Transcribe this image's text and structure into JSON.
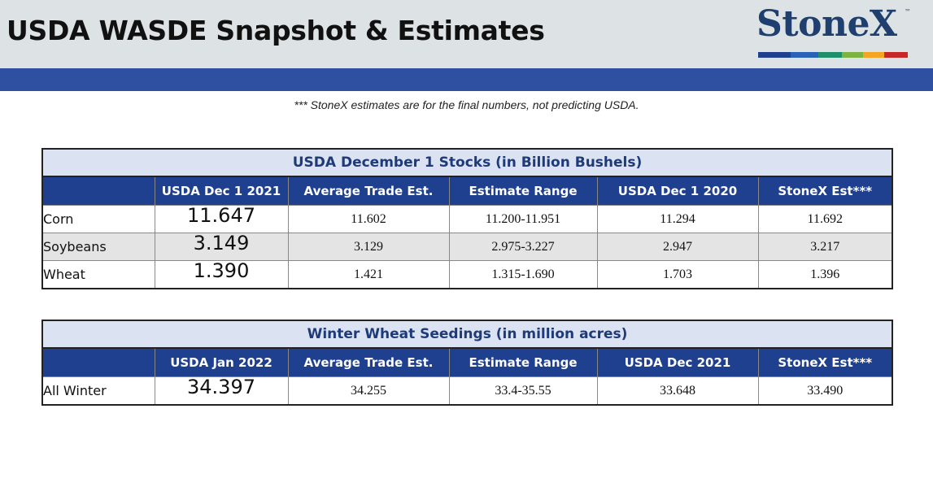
{
  "header": {
    "title": "USDA WASDE Snapshot & Estimates",
    "logo": "StoneX",
    "logo_tm": "™",
    "logo_bar_colors": [
      "#1f3f8f",
      "#2a62b8",
      "#1e8f6a",
      "#7cb342",
      "#f4a521",
      "#c62828"
    ]
  },
  "note": "*** StoneX estimates are for the final numbers, not predicting USDA.",
  "stocks": {
    "title": "USDA December 1 Stocks (in Billion Bushels)",
    "columns": [
      "USDA Dec 1 2021",
      "Average Trade Est.",
      "Estimate Range",
      "USDA Dec 1 2020",
      "StoneX Est***"
    ],
    "rows": [
      {
        "crop": "Corn",
        "usda": "11.647",
        "avg": "11.602",
        "range": "11.200-11.951",
        "prior": "11.294",
        "stonex": "11.692"
      },
      {
        "crop": "Soybeans",
        "usda": "3.149",
        "avg": "3.129",
        "range": "2.975-3.227",
        "prior": "2.947",
        "stonex": "3.217"
      },
      {
        "crop": "Wheat",
        "usda": "1.390",
        "avg": "1.421",
        "range": "1.315-1.690",
        "prior": "1.703",
        "stonex": "1.396"
      }
    ]
  },
  "seedings": {
    "title": "Winter Wheat Seedings (in million acres)",
    "columns": [
      "USDA Jan 2022",
      "Average Trade Est.",
      "Estimate Range",
      "USDA Dec 2021",
      "StoneX Est***"
    ],
    "rows": [
      {
        "crop": "All Winter",
        "usda": "34.397",
        "avg": "34.255",
        "range": "33.4-35.55",
        "prior": "33.648",
        "stonex": "33.490"
      }
    ]
  }
}
